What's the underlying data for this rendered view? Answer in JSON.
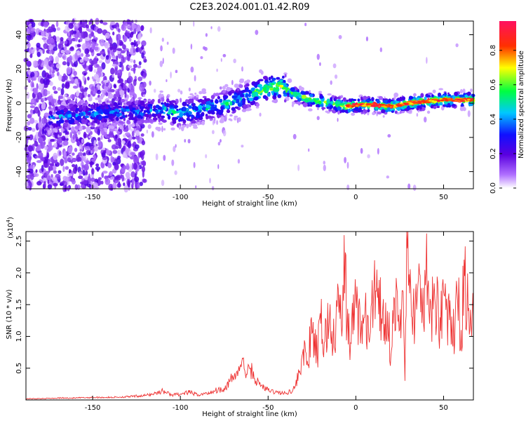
{
  "title": "C2E3.2024.001.01.42.R09",
  "chart_data": [
    {
      "type": "heatmap",
      "xlabel": "Height of straight line (km)",
      "ylabel": "Frequency (Hz)",
      "xlim": [
        -188,
        67
      ],
      "ylim": [
        -50,
        48
      ],
      "xticks": [
        -150,
        -100,
        -50,
        0,
        50
      ],
      "yticks": [
        -40,
        -20,
        0,
        20,
        40
      ],
      "colorbar": {
        "label": "Normalized spectral amplitude",
        "range": [
          0,
          0.97
        ],
        "ticks": [
          "0.0",
          "0.2",
          "0.4",
          "0.6",
          "0.8"
        ]
      },
      "ridge": {
        "x": [
          -170,
          -150,
          -140,
          -120,
          -110,
          -100,
          -90,
          -80,
          -70,
          -60,
          -50,
          -42,
          -35,
          -25,
          -15,
          -5,
          0,
          10,
          20,
          30,
          40,
          50,
          60,
          67
        ],
        "freq": [
          -8,
          -6,
          -5,
          -5,
          -4,
          -6,
          -4,
          -2,
          1,
          5,
          9,
          10,
          5,
          2,
          0,
          -2,
          -1,
          -1,
          -2,
          0,
          1,
          2,
          2,
          2
        ]
      }
    },
    {
      "type": "line",
      "xlabel": "Height of straight line (km)",
      "ylabel": "SNR (10 * v/v)",
      "yscale_label": "(x10",
      "yscale_exp": "4",
      "xlim": [
        -188,
        67
      ],
      "ylim": [
        0,
        2.65
      ],
      "xticks": [
        -150,
        -100,
        -50,
        0,
        50
      ],
      "yticks": [
        "0.5",
        "1.0",
        "1.5",
        "2.0",
        "2.5"
      ],
      "series": [
        {
          "name": "SNR",
          "color": "#ee3333",
          "x": [
            -188,
            -180,
            -170,
            -160,
            -150,
            -140,
            -130,
            -120,
            -115,
            -110,
            -105,
            -100,
            -95,
            -90,
            -85,
            -80,
            -75,
            -70,
            -67,
            -65,
            -62,
            -60,
            -57,
            -55,
            -50,
            -45,
            -40,
            -35,
            -32,
            -30,
            -28,
            -25,
            -22,
            -20,
            -18,
            -15,
            -12,
            -10,
            -8,
            -6,
            -5,
            -3,
            0,
            3,
            5,
            8,
            10,
            12,
            15,
            18,
            20,
            22,
            25,
            27,
            28,
            29,
            30,
            32,
            35,
            38,
            40,
            42,
            45,
            48,
            50,
            52,
            55,
            58,
            60,
            62,
            64,
            66,
            67
          ],
          "values": [
            0.02,
            0.02,
            0.03,
            0.03,
            0.04,
            0.04,
            0.05,
            0.07,
            0.1,
            0.14,
            0.08,
            0.09,
            0.12,
            0.08,
            0.1,
            0.15,
            0.18,
            0.35,
            0.45,
            0.6,
            0.4,
            0.5,
            0.3,
            0.25,
            0.15,
            0.12,
            0.1,
            0.18,
            0.45,
            0.8,
            0.55,
            1.05,
            0.7,
            1.2,
            0.9,
            1.3,
            0.8,
            1.75,
            1.0,
            2.32,
            1.2,
            0.9,
            1.6,
            1.1,
            1.3,
            1.0,
            1.55,
            2.05,
            1.2,
            1.4,
            0.7,
            1.6,
            1.1,
            1.7,
            0.3,
            2.65,
            1.8,
            1.3,
            1.6,
            1.4,
            2.0,
            1.2,
            1.6,
            1.3,
            1.7,
            1.4,
            0.9,
            1.55,
            1.1,
            1.95,
            1.4,
            1.0,
            1.3
          ]
        }
      ]
    }
  ]
}
